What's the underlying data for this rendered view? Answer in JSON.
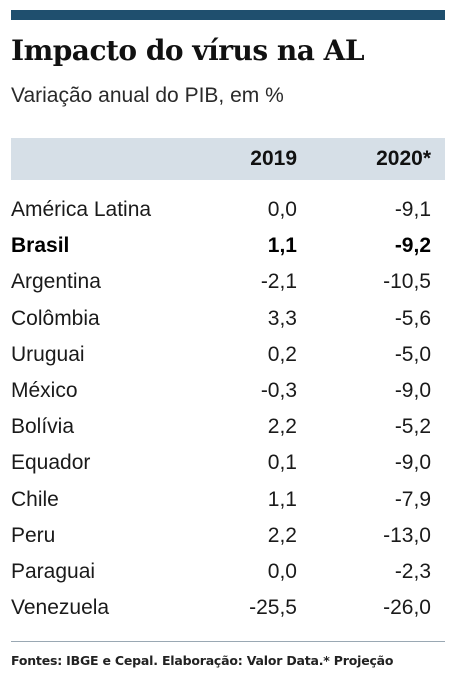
{
  "colors": {
    "accent_bar": "#1f4f6e",
    "header_background": "#d6dfe7"
  },
  "title": "Impacto do vírus na AL",
  "subtitle": "Variação anual do PIB, em %",
  "table": {
    "headers": [
      "",
      "2019",
      "2020*"
    ],
    "rows": [
      {
        "country": "América Latina",
        "y2019": "0,0",
        "y2020": "-9,1",
        "highlight": false
      },
      {
        "country": "Brasil",
        "y2019": "1,1",
        "y2020": "-9,2",
        "highlight": true
      },
      {
        "country": "Argentina",
        "y2019": "-2,1",
        "y2020": "-10,5",
        "highlight": false
      },
      {
        "country": "Colômbia",
        "y2019": "3,3",
        "y2020": "-5,6",
        "highlight": false
      },
      {
        "country": "Uruguai",
        "y2019": "0,2",
        "y2020": "-5,0",
        "highlight": false
      },
      {
        "country": "México",
        "y2019": "-0,3",
        "y2020": "-9,0",
        "highlight": false
      },
      {
        "country": "Bolívia",
        "y2019": "2,2",
        "y2020": "-5,2",
        "highlight": false
      },
      {
        "country": "Equador",
        "y2019": "0,1",
        "y2020": "-9,0",
        "highlight": false
      },
      {
        "country": "Chile",
        "y2019": "1,1",
        "y2020": "-7,9",
        "highlight": false
      },
      {
        "country": "Peru",
        "y2019": "2,2",
        "y2020": "-13,0",
        "highlight": false
      },
      {
        "country": "Paraguai",
        "y2019": "0,0",
        "y2020": "-2,3",
        "highlight": false
      },
      {
        "country": "Venezuela",
        "y2019": "-25,5",
        "y2020": "-26,0",
        "highlight": false
      }
    ]
  },
  "footer": "Fontes: IBGE e Cepal. Elaboração: Valor Data.* Projeção"
}
